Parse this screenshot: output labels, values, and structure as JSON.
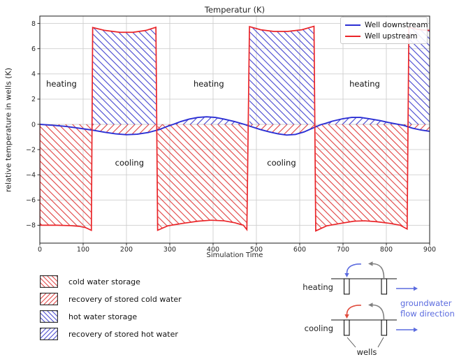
{
  "chart_data": {
    "type": "line",
    "title": "Temperatur (K)",
    "xlabel": "Simulation Time",
    "ylabel": "relative temperature in wells (K)",
    "xlim": [
      0,
      900
    ],
    "ylim": [
      -9.4,
      8.6
    ],
    "xticks": [
      0,
      100,
      200,
      300,
      400,
      500,
      600,
      700,
      800,
      900
    ],
    "yticks": [
      -8,
      -6,
      -4,
      -2,
      0,
      2,
      4,
      6,
      8
    ],
    "grid": true,
    "legend": {
      "position": "upper right",
      "entries": [
        "Well downstream",
        "Well upstream"
      ]
    },
    "series": [
      {
        "name": "Well downstream",
        "color": "#2b2fd4",
        "points": [
          [
            0,
            0
          ],
          [
            30,
            -0.07
          ],
          [
            60,
            -0.16
          ],
          [
            90,
            -0.3
          ],
          [
            120,
            -0.45
          ],
          [
            150,
            -0.63
          ],
          [
            175,
            -0.75
          ],
          [
            200,
            -0.82
          ],
          [
            225,
            -0.78
          ],
          [
            250,
            -0.65
          ],
          [
            275,
            -0.42
          ],
          [
            295,
            -0.15
          ],
          [
            308,
            0
          ],
          [
            325,
            0.22
          ],
          [
            345,
            0.42
          ],
          [
            365,
            0.55
          ],
          [
            385,
            0.6
          ],
          [
            405,
            0.55
          ],
          [
            425,
            0.42
          ],
          [
            450,
            0.22
          ],
          [
            472,
            0
          ],
          [
            490,
            -0.2
          ],
          [
            510,
            -0.42
          ],
          [
            530,
            -0.6
          ],
          [
            550,
            -0.75
          ],
          [
            570,
            -0.85
          ],
          [
            590,
            -0.8
          ],
          [
            610,
            -0.6
          ],
          [
            630,
            -0.3
          ],
          [
            649,
            -0.02
          ],
          [
            660,
            0.08
          ],
          [
            675,
            0.25
          ],
          [
            700,
            0.45
          ],
          [
            720,
            0.55
          ],
          [
            740,
            0.55
          ],
          [
            760,
            0.45
          ],
          [
            785,
            0.3
          ],
          [
            805,
            0.15
          ],
          [
            825,
            0.02
          ],
          [
            840,
            -0.08
          ],
          [
            860,
            -0.3
          ],
          [
            880,
            -0.45
          ],
          [
            900,
            -0.55
          ]
        ]
      },
      {
        "name": "Well upstream",
        "color": "#ea2428",
        "start": [
          0,
          0
        ],
        "segments": [
          {
            "phase": "cold water storage",
            "kind": "cold",
            "points": [
              [
                0,
                -8.0
              ],
              [
                40,
                -8.0
              ],
              [
                70,
                -8.03
              ],
              [
                90,
                -8.08
              ],
              [
                105,
                -8.18
              ],
              [
                119,
                -8.4
              ]
            ]
          },
          {
            "phase": "hot water storage",
            "kind": "hot",
            "points": [
              [
                122,
                7.68
              ],
              [
                150,
                7.45
              ],
              [
                185,
                7.3
              ],
              [
                215,
                7.3
              ],
              [
                245,
                7.45
              ],
              [
                268,
                7.7
              ]
            ]
          },
          {
            "phase": "cold water storage",
            "kind": "cold",
            "points": [
              [
                272,
                -8.4
              ],
              [
                295,
                -8.05
              ],
              [
                330,
                -7.85
              ],
              [
                365,
                -7.68
              ],
              [
                395,
                -7.6
              ],
              [
                425,
                -7.65
              ],
              [
                450,
                -7.8
              ],
              [
                470,
                -8.0
              ],
              [
                478,
                -8.35
              ]
            ]
          },
          {
            "phase": "hot water storage",
            "kind": "hot",
            "points": [
              [
                484,
                7.75
              ],
              [
                510,
                7.5
              ],
              [
                540,
                7.37
              ],
              [
                572,
                7.37
              ],
              [
                605,
                7.5
              ],
              [
                633,
                7.78
              ]
            ]
          },
          {
            "phase": "cold water storage",
            "kind": "cold",
            "points": [
              [
                637,
                -8.45
              ],
              [
                662,
                -8.05
              ],
              [
                695,
                -7.85
              ],
              [
                725,
                -7.68
              ],
              [
                750,
                -7.65
              ],
              [
                778,
                -7.72
              ],
              [
                808,
                -7.85
              ],
              [
                832,
                -8.0
              ],
              [
                848,
                -8.3
              ]
            ]
          },
          {
            "phase": "hot water storage",
            "kind": "hot",
            "points": [
              [
                852,
                7.7
              ],
              [
                870,
                7.55
              ],
              [
                885,
                7.48
              ],
              [
                900,
                7.45
              ]
            ]
          }
        ]
      }
    ],
    "fills": {
      "cold_storage": {
        "label": "cold water storage",
        "hatch": "backslash",
        "color": "#e04040"
      },
      "hot_storage": {
        "label": "hot water storage",
        "hatch": "backslash",
        "color": "#4545cf"
      },
      "cold_recovery": {
        "label": "recovery of stored cold water",
        "hatch": "slash",
        "color": "#e04040",
        "rule": "between downstream curve and 0 where downstream < 0, from t = 120",
        "min_t": 120
      },
      "hot_recovery": {
        "label": "recovery of stored hot water",
        "hatch": "slash",
        "color": "#4545cf",
        "rule": "between downstream curve and 0 where downstream > 0",
        "min_t": 0
      }
    },
    "annotations": [
      {
        "text": "heating",
        "t": 50,
        "v": 3.2
      },
      {
        "text": "cooling",
        "t": 207,
        "v": -3.05
      },
      {
        "text": "heating",
        "t": 390,
        "v": 3.2
      },
      {
        "text": "cooling",
        "t": 558,
        "v": -3.05
      },
      {
        "text": "heating",
        "t": 750,
        "v": 3.2
      }
    ],
    "colors": {
      "grid": "#cfcfcf",
      "spine": "#1a1a1a",
      "tick_text": "#262626"
    }
  },
  "legend_blocks": {
    "items": [
      {
        "label": "cold water storage",
        "hatch": "backslash",
        "color": "#e04040"
      },
      {
        "label": "recovery of stored cold water",
        "hatch": "slash",
        "color": "#e04040"
      },
      {
        "label": "hot water storage",
        "hatch": "backslash",
        "color": "#4545cf"
      },
      {
        "label": "recovery of stored hot water",
        "hatch": "slash",
        "color": "#4545cf"
      }
    ]
  },
  "diagram": {
    "rows": [
      {
        "label": "heating",
        "injection_arrow_color": "#5b6bdf"
      },
      {
        "label": "cooling",
        "injection_arrow_color": "#e04b3c"
      }
    ],
    "extraction_arrow_color": "#808080",
    "flow_arrow_color": "#5b6bdf",
    "flow_label_line1": "groundwater",
    "flow_label_line2": "flow direction",
    "wells_label": "wells",
    "text_color": "#222222"
  }
}
